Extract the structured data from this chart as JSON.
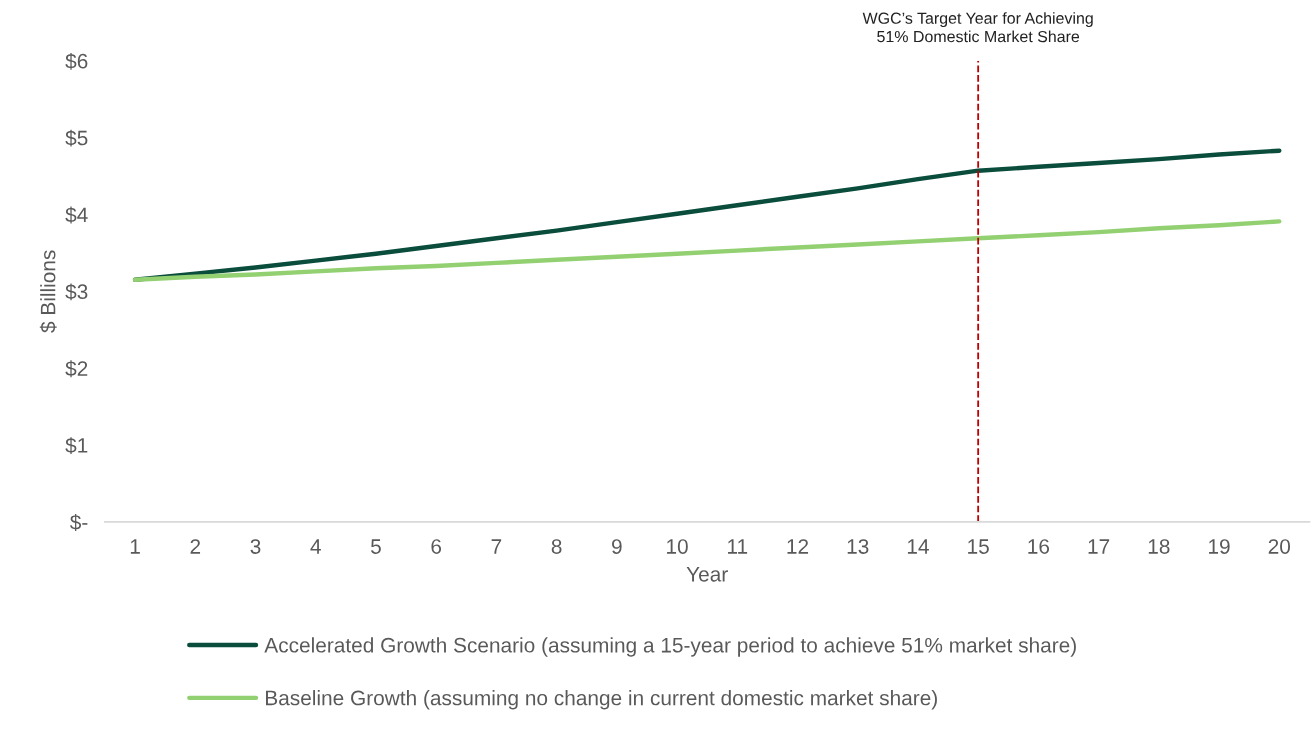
{
  "chart_data": {
    "type": "line",
    "xlabel": "Year",
    "ylabel": "$ Billions",
    "x": [
      1,
      2,
      3,
      4,
      5,
      6,
      7,
      8,
      9,
      10,
      11,
      12,
      13,
      14,
      15,
      16,
      17,
      18,
      19,
      20
    ],
    "xlim": [
      0.5,
      20.5
    ],
    "xticks": [
      1,
      2,
      3,
      4,
      5,
      6,
      7,
      8,
      9,
      10,
      11,
      12,
      13,
      14,
      15,
      16,
      17,
      18,
      19,
      20
    ],
    "ylim": [
      0,
      6
    ],
    "yticks": [
      {
        "value": 0,
        "label": "$-"
      },
      {
        "value": 1,
        "label": "$1"
      },
      {
        "value": 2,
        "label": "$2"
      },
      {
        "value": 3,
        "label": "$3"
      },
      {
        "value": 4,
        "label": "$4"
      },
      {
        "value": 5,
        "label": "$5"
      },
      {
        "value": 6,
        "label": "$6"
      }
    ],
    "series": [
      {
        "name": "Accelerated Growth Scenario (assuming a 15-year period to achieve 51% market share)",
        "color": "#0b4d3c",
        "values": [
          3.15,
          3.23,
          3.31,
          3.4,
          3.49,
          3.59,
          3.69,
          3.79,
          3.9,
          4.01,
          4.12,
          4.23,
          4.34,
          4.46,
          4.57,
          4.62,
          4.67,
          4.72,
          4.78,
          4.83
        ]
      },
      {
        "name": "Baseline Growth (assuming no change in current domestic market share)",
        "color": "#92d072",
        "values": [
          3.15,
          3.19,
          3.22,
          3.26,
          3.3,
          3.33,
          3.37,
          3.41,
          3.45,
          3.49,
          3.53,
          3.57,
          3.61,
          3.65,
          3.69,
          3.73,
          3.77,
          3.82,
          3.86,
          3.91
        ]
      }
    ],
    "ref_lines": [
      {
        "axis": "x",
        "value": 15,
        "label": "WGC’s Target Year for Achieving\n51% Domestic Market Share",
        "color": "#c00000",
        "line_style": "dashed"
      }
    ],
    "grid": false,
    "legend": "bottom",
    "marker": "none",
    "line_style": "solid"
  }
}
